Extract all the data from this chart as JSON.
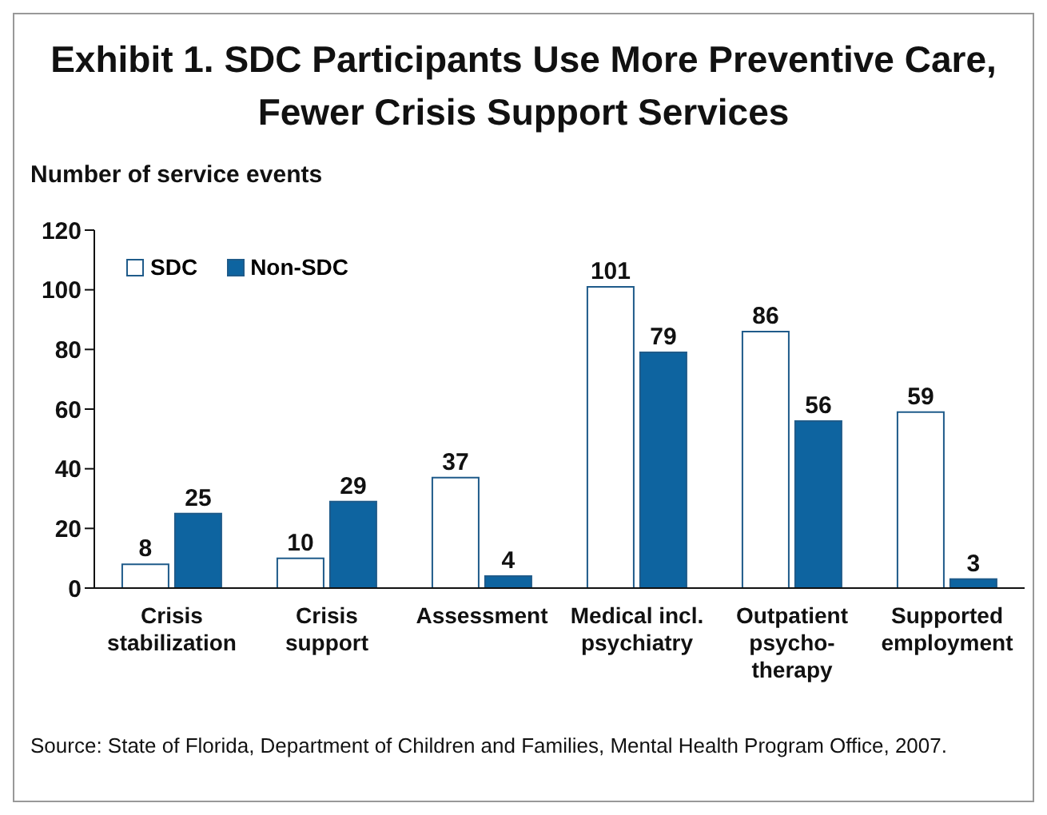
{
  "chart_data": {
    "type": "bar",
    "title": "Exhibit 1. SDC Participants Use More Preventive Care,\nFewer Crisis Support Services",
    "ylabel": "Number of service events",
    "categories": [
      "Crisis\nstabilization",
      "Crisis\nsupport",
      "Assessment",
      "Medical incl.\npsychiatry",
      "Outpatient\npsycho-\ntherapy",
      "Supported\nemployment"
    ],
    "series": [
      {
        "name": "SDC",
        "color": "#ffffff",
        "values": [
          8,
          10,
          37,
          101,
          86,
          59
        ]
      },
      {
        "name": "Non-SDC",
        "color": "#0e64a0",
        "values": [
          25,
          29,
          4,
          79,
          56,
          3
        ]
      }
    ],
    "ylim": [
      0,
      120
    ],
    "yticks": [
      0,
      20,
      40,
      60,
      80,
      100,
      120
    ],
    "grid": false,
    "legend": "top left",
    "data_labels": true,
    "annotations": [
      "Source: State of Florida, Department of Children and Families, Mental Health Program Office, 2007."
    ]
  }
}
